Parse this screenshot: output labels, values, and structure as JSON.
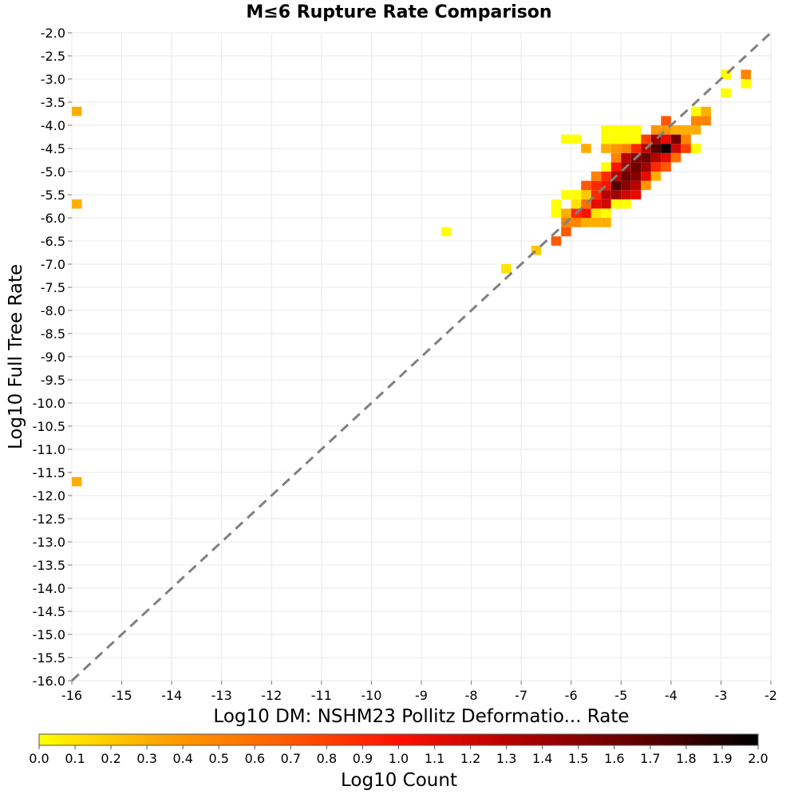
{
  "chart_data": {
    "type": "heatmap",
    "title": "M≤6 Rupture Rate Comparison",
    "xlabel": "Log10 DM: NSHM23 Pollitz Deformatio... Rate",
    "ylabel": "Log10 Full Tree Rate",
    "xlim": [
      -16,
      -2
    ],
    "ylim": [
      -16,
      -2
    ],
    "x_ticks": [
      "-16",
      "-15",
      "-14",
      "-13",
      "-12",
      "-11",
      "-10",
      "-9",
      "-8",
      "-7",
      "-6",
      "-5",
      "-4",
      "-3",
      "-2"
    ],
    "y_ticks": [
      "-2.0",
      "-2.5",
      "-3.0",
      "-3.5",
      "-4.0",
      "-4.5",
      "-5.0",
      "-5.5",
      "-6.0",
      "-6.5",
      "-7.0",
      "-7.5",
      "-8.0",
      "-8.5",
      "-9.0",
      "-9.5",
      "-10.0",
      "-10.5",
      "-11.0",
      "-11.5",
      "-12.0",
      "-12.5",
      "-13.0",
      "-13.5",
      "-14.0",
      "-14.5",
      "-15.0",
      "-15.5",
      "-16.0"
    ],
    "grid": true,
    "reference_line": {
      "style": "dashed",
      "from": [
        -16,
        -16
      ],
      "to": [
        -2,
        -2
      ],
      "color": "#808080"
    },
    "bin_size": 0.2,
    "colorbar": {
      "label": "Log10 Count",
      "range": [
        0,
        2
      ],
      "ticks": [
        "0.0",
        "0.1",
        "0.2",
        "0.3",
        "0.4",
        "0.5",
        "0.6",
        "0.7",
        "0.8",
        "0.9",
        "1.0",
        "1.1",
        "1.2",
        "1.3",
        "1.4",
        "1.5",
        "1.6",
        "1.7",
        "1.8",
        "1.9",
        "2.0"
      ],
      "colors": [
        "#ffff00",
        "#ffa500",
        "#ff6000",
        "#ff1000",
        "#b00000",
        "#600000",
        "#000000"
      ]
    },
    "cells": [
      {
        "x": -15.9,
        "y": -3.7,
        "v": 0.3
      },
      {
        "x": -15.9,
        "y": -5.7,
        "v": 0.3
      },
      {
        "x": -15.9,
        "y": -11.7,
        "v": 0.3
      },
      {
        "x": -8.5,
        "y": -6.3,
        "v": 0.0
      },
      {
        "x": -7.3,
        "y": -7.1,
        "v": 0.1
      },
      {
        "x": -6.7,
        "y": -6.7,
        "v": 0.2
      },
      {
        "x": -6.3,
        "y": -6.5,
        "v": 0.7
      },
      {
        "x": -6.1,
        "y": -6.3,
        "v": 0.7
      },
      {
        "x": -6.1,
        "y": -6.1,
        "v": 0.5
      },
      {
        "x": -6.3,
        "y": -5.9,
        "v": 0.0
      },
      {
        "x": -6.3,
        "y": -5.7,
        "v": 0.0
      },
      {
        "x": -6.1,
        "y": -5.9,
        "v": 0.3
      },
      {
        "x": -6.1,
        "y": -5.5,
        "v": 0.0
      },
      {
        "x": -5.9,
        "y": -6.1,
        "v": 0.5
      },
      {
        "x": -5.9,
        "y": -5.9,
        "v": 0.9
      },
      {
        "x": -5.9,
        "y": -5.5,
        "v": 0.0
      },
      {
        "x": -5.9,
        "y": -5.7,
        "v": 0.1
      },
      {
        "x": -5.7,
        "y": -6.1,
        "v": 0.3
      },
      {
        "x": -5.7,
        "y": -5.9,
        "v": 1.0
      },
      {
        "x": -5.7,
        "y": -5.7,
        "v": 0.6
      },
      {
        "x": -5.7,
        "y": -5.5,
        "v": 0.2
      },
      {
        "x": -5.7,
        "y": -5.3,
        "v": 0.7
      },
      {
        "x": -5.5,
        "y": -6.1,
        "v": 0.3
      },
      {
        "x": -5.5,
        "y": -5.9,
        "v": 0.1
      },
      {
        "x": -5.5,
        "y": -5.7,
        "v": 1.1
      },
      {
        "x": -5.5,
        "y": -5.5,
        "v": 0.9
      },
      {
        "x": -5.5,
        "y": -5.3,
        "v": 0.9
      },
      {
        "x": -5.5,
        "y": -5.1,
        "v": 0.5
      },
      {
        "x": -5.3,
        "y": -6.1,
        "v": 0.3
      },
      {
        "x": -5.3,
        "y": -5.9,
        "v": 0.0
      },
      {
        "x": -5.3,
        "y": -5.7,
        "v": 1.2
      },
      {
        "x": -5.3,
        "y": -5.5,
        "v": 1.3
      },
      {
        "x": -5.3,
        "y": -5.3,
        "v": 1.0
      },
      {
        "x": -5.3,
        "y": -5.1,
        "v": 0.9
      },
      {
        "x": -5.3,
        "y": -4.9,
        "v": 0.0
      },
      {
        "x": -5.3,
        "y": -4.5,
        "v": 0.3
      },
      {
        "x": -5.3,
        "y": -4.3,
        "v": 0.0
      },
      {
        "x": -5.3,
        "y": -4.1,
        "v": 0.0
      },
      {
        "x": -6.1,
        "y": -4.3,
        "v": 0.0
      },
      {
        "x": -5.9,
        "y": -4.3,
        "v": 0.0
      },
      {
        "x": -5.7,
        "y": -4.5,
        "v": 0.3
      },
      {
        "x": -5.1,
        "y": -5.7,
        "v": 0.0
      },
      {
        "x": -5.1,
        "y": -5.5,
        "v": 1.4
      },
      {
        "x": -5.1,
        "y": -5.3,
        "v": 1.7
      },
      {
        "x": -5.1,
        "y": -5.1,
        "v": 1.3
      },
      {
        "x": -5.1,
        "y": -4.9,
        "v": 1.0
      },
      {
        "x": -5.1,
        "y": -4.7,
        "v": 0.5
      },
      {
        "x": -5.1,
        "y": -4.5,
        "v": 0.4
      },
      {
        "x": -5.1,
        "y": -4.3,
        "v": 0.0
      },
      {
        "x": -5.1,
        "y": -4.1,
        "v": 0.0
      },
      {
        "x": -4.9,
        "y": -5.7,
        "v": 0.0
      },
      {
        "x": -4.9,
        "y": -5.5,
        "v": 1.2
      },
      {
        "x": -4.9,
        "y": -5.3,
        "v": 1.5
      },
      {
        "x": -4.9,
        "y": -5.1,
        "v": 1.6
      },
      {
        "x": -4.9,
        "y": -4.9,
        "v": 1.4
      },
      {
        "x": -4.9,
        "y": -4.7,
        "v": 1.3
      },
      {
        "x": -4.9,
        "y": -4.5,
        "v": 0.5
      },
      {
        "x": -4.9,
        "y": -4.3,
        "v": 0.0
      },
      {
        "x": -4.9,
        "y": -4.1,
        "v": 0.0
      },
      {
        "x": -4.7,
        "y": -5.5,
        "v": 1.1
      },
      {
        "x": -4.7,
        "y": -5.3,
        "v": 1.3
      },
      {
        "x": -4.7,
        "y": -5.1,
        "v": 1.5
      },
      {
        "x": -4.7,
        "y": -4.9,
        "v": 1.6
      },
      {
        "x": -4.7,
        "y": -4.7,
        "v": 1.5
      },
      {
        "x": -4.7,
        "y": -4.5,
        "v": 0.9
      },
      {
        "x": -4.7,
        "y": -4.3,
        "v": 0.0
      },
      {
        "x": -4.7,
        "y": -4.1,
        "v": 0.0
      },
      {
        "x": -4.5,
        "y": -5.3,
        "v": 0.4
      },
      {
        "x": -4.5,
        "y": -5.1,
        "v": 1.1
      },
      {
        "x": -4.5,
        "y": -4.9,
        "v": 1.4
      },
      {
        "x": -4.5,
        "y": -4.7,
        "v": 1.6
      },
      {
        "x": -4.5,
        "y": -4.5,
        "v": 1.3
      },
      {
        "x": -4.5,
        "y": -4.3,
        "v": 0.8
      },
      {
        "x": -4.3,
        "y": -5.1,
        "v": 0.3
      },
      {
        "x": -4.3,
        "y": -4.9,
        "v": 0.9
      },
      {
        "x": -4.3,
        "y": -4.7,
        "v": 1.3
      },
      {
        "x": -4.3,
        "y": -4.5,
        "v": 1.7
      },
      {
        "x": -4.3,
        "y": -4.3,
        "v": 1.4
      },
      {
        "x": -4.3,
        "y": -4.1,
        "v": 0.4
      },
      {
        "x": -4.1,
        "y": -4.9,
        "v": 0.7
      },
      {
        "x": -4.1,
        "y": -4.7,
        "v": 1.1
      },
      {
        "x": -4.1,
        "y": -4.5,
        "v": 1.95
      },
      {
        "x": -4.1,
        "y": -4.3,
        "v": 1.1
      },
      {
        "x": -4.1,
        "y": -4.1,
        "v": 0.4
      },
      {
        "x": -4.1,
        "y": -3.9,
        "v": 0.7
      },
      {
        "x": -3.9,
        "y": -4.7,
        "v": 0.6
      },
      {
        "x": -3.9,
        "y": -4.5,
        "v": 1.2
      },
      {
        "x": -3.9,
        "y": -4.3,
        "v": 1.6
      },
      {
        "x": -3.9,
        "y": -4.1,
        "v": 0.3
      },
      {
        "x": -3.7,
        "y": -4.5,
        "v": 0.8
      },
      {
        "x": -3.7,
        "y": -4.3,
        "v": 0.5
      },
      {
        "x": -3.7,
        "y": -4.1,
        "v": 0.3
      },
      {
        "x": -3.5,
        "y": -4.5,
        "v": 0.0
      },
      {
        "x": -3.5,
        "y": -4.1,
        "v": 0.3
      },
      {
        "x": -3.5,
        "y": -3.9,
        "v": 0.5
      },
      {
        "x": -3.5,
        "y": -3.7,
        "v": 0.0
      },
      {
        "x": -3.3,
        "y": -3.9,
        "v": 0.5
      },
      {
        "x": -3.3,
        "y": -3.7,
        "v": 0.3
      },
      {
        "x": -2.9,
        "y": -3.3,
        "v": 0.0
      },
      {
        "x": -2.9,
        "y": -2.9,
        "v": 0.0
      },
      {
        "x": -2.5,
        "y": -2.9,
        "v": 0.5
      },
      {
        "x": -2.5,
        "y": -3.1,
        "v": 0.0
      }
    ]
  }
}
